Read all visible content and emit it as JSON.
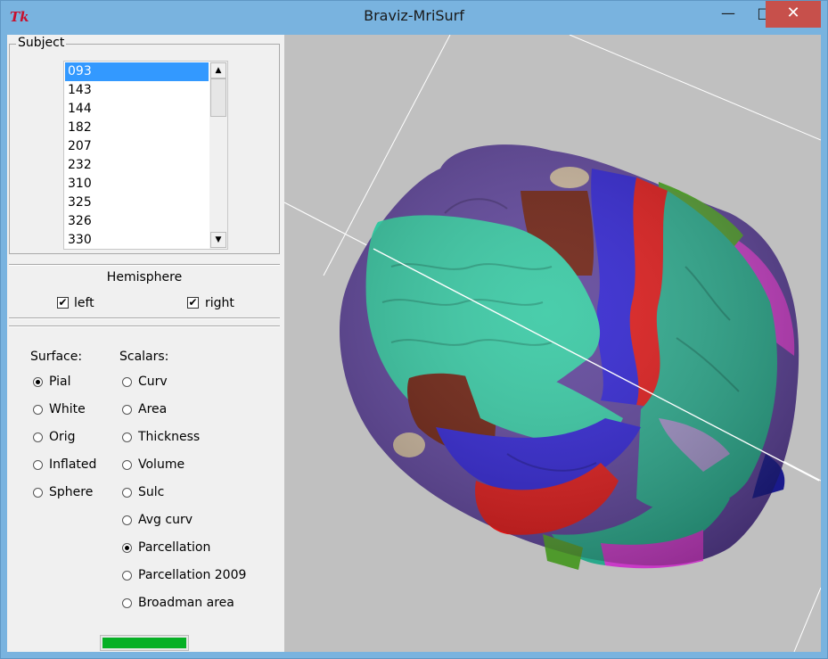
{
  "window": {
    "title": "Braviz-MriSurf",
    "icon": "tk-feather-icon",
    "controls": [
      "minimize-icon",
      "maximize-icon",
      "close-icon"
    ]
  },
  "subject": {
    "label": "Subject",
    "items": [
      "093",
      "143",
      "144",
      "182",
      "207",
      "232",
      "310",
      "325",
      "326",
      "330"
    ],
    "selected": "093"
  },
  "hemisphere": {
    "title": "Hemisphere",
    "left_label": "left",
    "right_label": "right",
    "left_checked": true,
    "right_checked": true
  },
  "surface": {
    "label": "Surface:",
    "options": [
      "Pial",
      "White",
      "Orig",
      "Inflated",
      "Sphere"
    ],
    "selected": "Pial"
  },
  "scalars": {
    "label": "Scalars:",
    "options": [
      "Curv",
      "Area",
      "Thickness",
      "Volume",
      "Sulc",
      "Avg curv",
      "Parcellation",
      "Parcellation 2009",
      "Broadman area"
    ],
    "selected": "Parcellation"
  },
  "progress": {
    "value": 1.0,
    "color": "#06b025"
  },
  "viewer": {
    "background": "#c0c0c0",
    "content": "brain-surface-render"
  }
}
